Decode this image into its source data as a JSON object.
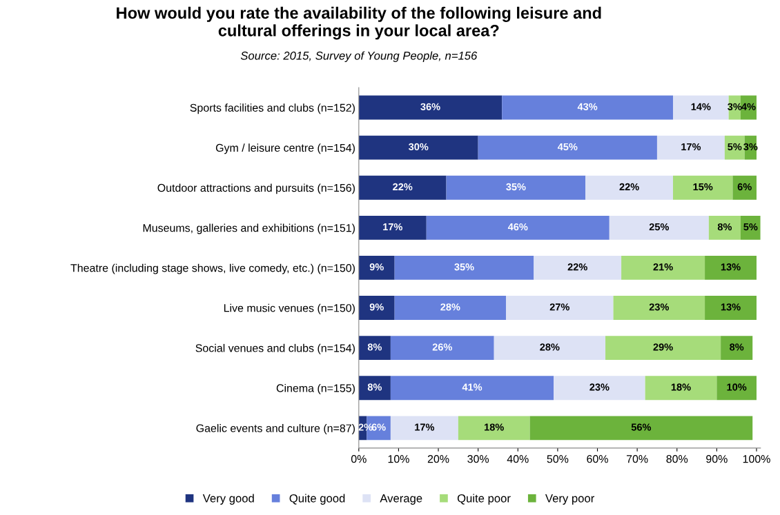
{
  "chart_data": {
    "type": "bar",
    "orientation": "horizontal",
    "stacked": true,
    "title": "How would you rate the availability of the following leisure and\ncultural offerings in your local area?",
    "subtitle": "Source: 2015, Survey of Young People, n=156",
    "categories": [
      "Sports facilities and clubs (n=152)",
      "Gym / leisure centre (n=154)",
      "Outdoor attractions and pursuits (n=156)",
      "Museums, galleries and exhibitions (n=151)",
      "Theatre (including stage shows, live comedy, etc.) (n=150)",
      "Live music venues (n=150)",
      "Social venues and clubs (n=154)",
      "Cinema (n=155)",
      "Gaelic events and culture (n=87)"
    ],
    "series": [
      {
        "name": "Very good",
        "color": "#1f3480",
        "values": [
          36,
          30,
          22,
          17,
          9,
          9,
          8,
          8,
          2
        ],
        "value_labels": [
          "36%",
          "30%",
          "22%",
          "17%",
          "9%",
          "9%",
          "8%",
          "8%",
          "2%"
        ]
      },
      {
        "name": "Quite good",
        "color": "#6680dc",
        "values": [
          43,
          45,
          35,
          46,
          35,
          28,
          26,
          41,
          6
        ],
        "value_labels": [
          "43%",
          "45%",
          "35%",
          "46%",
          "35%",
          "28%",
          "26%",
          "41%",
          "6%"
        ]
      },
      {
        "name": "Average",
        "color": "#dde2f5",
        "values": [
          14,
          17,
          22,
          25,
          22,
          27,
          28,
          23,
          17
        ],
        "value_labels": [
          "14%",
          "17%",
          "22%",
          "25%",
          "22%",
          "27%",
          "28%",
          "23%",
          "17%"
        ]
      },
      {
        "name": "Quite poor",
        "color": "#a6dc7a",
        "values": [
          3,
          5,
          15,
          8,
          21,
          23,
          29,
          18,
          18
        ],
        "value_labels": [
          "3%",
          "5%",
          "15%",
          "8%",
          "21%",
          "23%",
          "29%",
          "18%",
          "18%"
        ]
      },
      {
        "name": "Very poor",
        "color": "#6cb33c",
        "values": [
          4,
          3,
          6,
          5,
          13,
          13,
          8,
          10,
          56
        ],
        "value_labels": [
          "4%",
          "3%",
          "6%",
          "5%",
          "13%",
          "13%",
          "8%",
          "10%",
          "56%"
        ]
      }
    ],
    "xlim": [
      0,
      101
    ],
    "xticks": [
      {
        "value": 0,
        "label": "0%"
      },
      {
        "value": 10,
        "label": "10%"
      },
      {
        "value": 20,
        "label": "20%"
      },
      {
        "value": 30,
        "label": "30%"
      },
      {
        "value": 40,
        "label": "40%"
      },
      {
        "value": 50,
        "label": "50%"
      },
      {
        "value": 60,
        "label": "60%"
      },
      {
        "value": 70,
        "label": "70%"
      },
      {
        "value": 80,
        "label": "80%"
      },
      {
        "value": 90,
        "label": "90%"
      },
      {
        "value": 100,
        "label": "100%"
      }
    ],
    "grid": false,
    "legend": "bottom"
  }
}
